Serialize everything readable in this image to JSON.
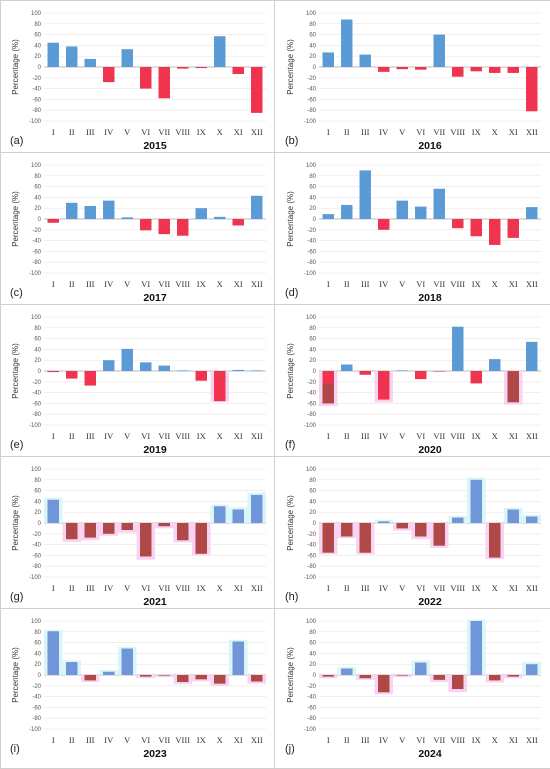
{
  "figure": {
    "ylabel": "Percentage (%)",
    "yticks": [
      100,
      80,
      60,
      40,
      20,
      0,
      -20,
      -40,
      -60,
      -80,
      -100
    ],
    "colors": {
      "positive": "#5b9bd5",
      "negative": "#f0344f",
      "positive_dark": "#7095d8",
      "negative_dark": "#b04848",
      "shade_pos": "#d8f6f8",
      "shade_neg": "#f8d4f2"
    }
  },
  "chart_data": [
    {
      "type": "bar",
      "panel": "(a)",
      "title": "2015",
      "categories": [
        "I",
        "II",
        "III",
        "IV",
        "V",
        "VI",
        "VII",
        "VIII",
        "IX",
        "X",
        "XI",
        "XII"
      ],
      "ylabel": "Percentage (%)",
      "ylim": [
        -100,
        100
      ],
      "values": [
        45,
        38,
        15,
        -28,
        33,
        -40,
        -58,
        -3,
        -2,
        57,
        -13,
        -85
      ]
    },
    {
      "type": "bar",
      "panel": "(b)",
      "title": "2016",
      "categories": [
        "I",
        "II",
        "III",
        "IV",
        "V",
        "VI",
        "VII",
        "VIII",
        "IX",
        "X",
        "XI",
        "XII"
      ],
      "ylabel": "Percentage (%)",
      "ylim": [
        -100,
        100
      ],
      "values": [
        27,
        88,
        23,
        -9,
        -4,
        -5,
        60,
        -18,
        -8,
        -11,
        -11,
        -82
      ]
    },
    {
      "type": "bar",
      "panel": "(c)",
      "title": "2017",
      "categories": [
        "I",
        "II",
        "III",
        "IV",
        "V",
        "VI",
        "VII",
        "VIII",
        "IX",
        "X",
        "XI",
        "XII"
      ],
      "ylabel": "Percentage (%)",
      "ylim": [
        -100,
        100
      ],
      "values": [
        -7,
        30,
        24,
        34,
        3,
        -21,
        -28,
        -31,
        20,
        4,
        -12,
        43
      ]
    },
    {
      "type": "bar",
      "panel": "(d)",
      "title": "2018",
      "categories": [
        "I",
        "II",
        "III",
        "IV",
        "V",
        "VI",
        "VII",
        "VIII",
        "IX",
        "X",
        "XI",
        "XII"
      ],
      "ylabel": "Percentage (%)",
      "ylim": [
        -100,
        100
      ],
      "values": [
        9,
        26,
        90,
        -20,
        34,
        23,
        56,
        -17,
        -32,
        -48,
        -35,
        22
      ]
    },
    {
      "type": "bar",
      "panel": "(e)",
      "title": "2019",
      "categories": [
        "I",
        "II",
        "III",
        "IV",
        "V",
        "VI",
        "VII",
        "VIII",
        "IX",
        "X",
        "XI",
        "XII"
      ],
      "ylabel": "Percentage (%)",
      "ylim": [
        -100,
        100
      ],
      "values": [
        -2,
        -14,
        -27,
        20,
        41,
        16,
        10,
        1,
        -18,
        -56,
        2,
        1
      ],
      "shade": [
        null,
        null,
        null,
        null,
        null,
        null,
        null,
        null,
        null,
        -57,
        null,
        null
      ]
    },
    {
      "type": "bar",
      "panel": "(f)",
      "title": "2020",
      "categories": [
        "I",
        "II",
        "III",
        "IV",
        "V",
        "VI",
        "VII",
        "VIII",
        "IX",
        "X",
        "XI",
        "XII"
      ],
      "ylabel": "Percentage (%)",
      "ylim": [
        -100,
        100
      ],
      "values": [
        -60,
        12,
        -7,
        -53,
        1,
        -15,
        -1,
        82,
        -23,
        22,
        -1,
        54
      ],
      "overlay": [
        -23,
        null,
        null,
        null,
        null,
        null,
        null,
        null,
        null,
        null,
        -58,
        null
      ],
      "shade": [
        -65,
        null,
        null,
        -58,
        null,
        null,
        null,
        null,
        null,
        null,
        -62,
        null
      ]
    },
    {
      "type": "bar",
      "panel": "(g)",
      "title": "2021",
      "categories": [
        "I",
        "II",
        "III",
        "IV",
        "V",
        "VI",
        "VII",
        "VIII",
        "IX",
        "X",
        "XI",
        "XII"
      ],
      "ylabel": "Percentage (%)",
      "ylim": [
        -100,
        100
      ],
      "values": [
        43,
        -30,
        -27,
        -20,
        -13,
        -62,
        -6,
        -32,
        -57,
        31,
        25,
        52
      ],
      "shade": [
        47,
        -35,
        -32,
        -24,
        -18,
        -68,
        -10,
        -36,
        -60,
        34,
        29,
        56
      ]
    },
    {
      "type": "bar",
      "panel": "(h)",
      "title": "2022",
      "categories": [
        "I",
        "II",
        "III",
        "IV",
        "V",
        "VI",
        "VII",
        "VIII",
        "IX",
        "X",
        "XI",
        "XII"
      ],
      "ylabel": "Percentage (%)",
      "ylim": [
        -100,
        100
      ],
      "values": [
        -55,
        -25,
        -55,
        3,
        -10,
        -25,
        -42,
        10,
        80,
        -64,
        25,
        12
      ],
      "shade": [
        -58,
        -28,
        -58,
        6,
        -14,
        -30,
        -46,
        13,
        84,
        -67,
        28,
        15
      ]
    },
    {
      "type": "bar",
      "panel": "(i)",
      "title": "2023",
      "categories": [
        "I",
        "II",
        "III",
        "IV",
        "V",
        "VI",
        "VII",
        "VIII",
        "IX",
        "X",
        "XI",
        "XII"
      ],
      "ylabel": "Percentage (%)",
      "ylim": [
        -100,
        100
      ],
      "values": [
        81,
        24,
        -10,
        6,
        49,
        -3,
        -1,
        -13,
        -8,
        -16,
        62,
        -12
      ],
      "shade": [
        84,
        27,
        -13,
        9,
        52,
        -6,
        -4,
        -17,
        -12,
        -20,
        65,
        -16
      ]
    },
    {
      "type": "bar",
      "panel": "(j)",
      "title": "2024",
      "categories": [
        "I",
        "II",
        "III",
        "IV",
        "V",
        "VI",
        "VII",
        "VIII",
        "IX",
        "X",
        "XI",
        "XII"
      ],
      "ylabel": "Percentage (%)",
      "ylim": [
        -100,
        100
      ],
      "values": [
        -3,
        12,
        -6,
        -32,
        -1,
        23,
        -9,
        -26,
        100,
        -10,
        -3,
        20
      ],
      "shade": [
        -6,
        15,
        -9,
        -36,
        -4,
        27,
        -13,
        -32,
        103,
        -14,
        -6,
        24
      ]
    }
  ]
}
